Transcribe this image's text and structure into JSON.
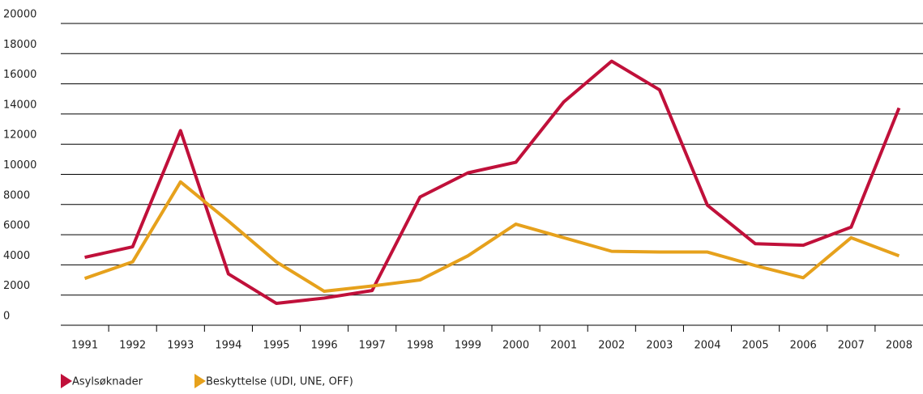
{
  "chart_data": {
    "type": "line",
    "categories": [
      "1991",
      "1992",
      "1993",
      "1994",
      "1995",
      "1996",
      "1997",
      "1998",
      "1999",
      "2000",
      "2001",
      "2002",
      "2003",
      "2004",
      "2005",
      "2006",
      "2007",
      "2008"
    ],
    "series": [
      {
        "name": "Asylsøknader",
        "color": "#c0103a",
        "values": [
          4500,
          5200,
          12900,
          3400,
          1450,
          1800,
          2300,
          8500,
          10100,
          10800,
          14800,
          17500,
          15600,
          7950,
          5400,
          5300,
          6500,
          14400
        ]
      },
      {
        "name": "Beskyttelse (UDI, UNE, OFF)",
        "color": "#e6a11c",
        "values": [
          3100,
          4200,
          9500,
          6900,
          4200,
          2250,
          2600,
          3000,
          4600,
          6700,
          5800,
          4900,
          4850,
          4850,
          3950,
          3150,
          5800,
          4600
        ]
      }
    ],
    "ylim": [
      0,
      20000
    ],
    "yticks": [
      0,
      2000,
      4000,
      6000,
      8000,
      10000,
      12000,
      14000,
      16000,
      18000,
      20000
    ],
    "grid": true
  }
}
